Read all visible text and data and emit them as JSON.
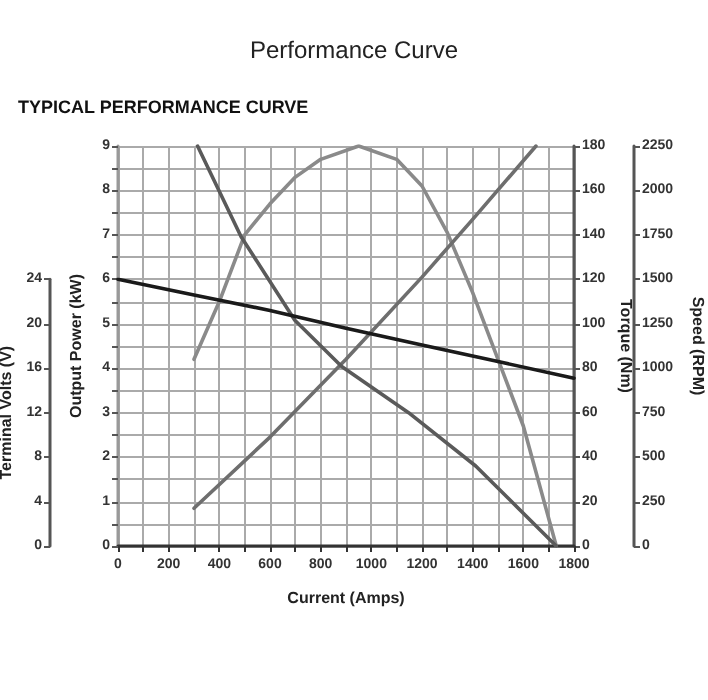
{
  "chart_data": [
    {
      "type": "line",
      "ylabel": "Terminal Volts (V)",
      "xlim": [
        0,
        1800
      ],
      "ylim": [
        0,
        24
      ],
      "yticks": [
        0,
        4,
        8,
        12,
        16,
        20,
        24
      ],
      "tick_labels": "y",
      "series": [
        {
          "color": "#1a1a1a",
          "x": [
            0,
            300,
            600,
            900,
            1200,
            1500,
            1800
          ],
          "values": [
            24,
            22.6,
            21.2,
            19.6,
            18.1,
            16.6,
            15.1
          ]
        }
      ]
    },
    {
      "type": "line",
      "title": "Performance Curve",
      "subtitle": "TYPICAL PERFORMANCE CURVE",
      "xlabel": "Current (Amps)",
      "ylabel": "Output Power (kW)",
      "y2label": "Torque (Nm)",
      "y3label": "Speed (RPM)",
      "xlim": [
        0,
        1800
      ],
      "xticks": [
        0,
        {
          "value": 100,
          "label": null
        },
        200,
        {
          "value": 300,
          "label": null
        },
        400,
        {
          "value": 500,
          "label": null
        },
        600,
        {
          "value": 700,
          "label": null
        },
        800,
        {
          "value": 900,
          "label": null
        },
        1000,
        {
          "value": 1100,
          "label": null
        },
        1200,
        {
          "value": 1300,
          "label": null
        },
        1400,
        {
          "value": 1500,
          "label": null
        },
        1600,
        {
          "value": 1700,
          "label": null
        },
        1800
      ],
      "ylim": [
        0,
        9
      ],
      "yticks": [
        0,
        {
          "value": 0.5,
          "label": null
        },
        1,
        {
          "value": 1.5,
          "label": null
        },
        2,
        {
          "value": 2.5,
          "label": null
        },
        3,
        {
          "value": 3.5,
          "label": null
        },
        4,
        {
          "value": 4.5,
          "label": null
        },
        5,
        {
          "value": 5.5,
          "label": null
        },
        6,
        {
          "value": 6.5,
          "label": null
        },
        7,
        {
          "value": 7.5,
          "label": null
        },
        8,
        {
          "value": 8.5,
          "label": null
        },
        9
      ],
      "y2lim": [
        0,
        180
      ],
      "y2ticks": [
        0,
        20,
        40,
        60,
        80,
        100,
        120,
        140,
        160,
        180
      ],
      "y3lim": [
        0,
        2250
      ],
      "y3ticks": [
        0,
        250,
        500,
        750,
        1000,
        1250,
        1500,
        1750,
        2000,
        2250
      ],
      "grid": true,
      "series": [
        {
          "color": "#8a8a8a",
          "x": [
            300,
            400,
            500,
            600,
            700,
            800,
            950,
            1100,
            1200,
            1300,
            1400,
            1500,
            1600,
            1730
          ],
          "values": [
            4.2,
            5.5,
            7,
            7.7,
            8.3,
            8.7,
            9,
            8.7,
            8.1,
            7.05,
            5.7,
            4.2,
            2.7,
            0
          ]
        },
        {
          "color": "#6e6e6e",
          "axis": "y2",
          "x": [
            300,
            600,
            900,
            1200,
            1400,
            1650
          ],
          "values": [
            17,
            49,
            84,
            121,
            147,
            180
          ]
        },
        {
          "color": "#5a5a5a",
          "axis": "y3",
          "x": [
            314,
            486,
            698,
            883,
            1147,
            1412,
            1730
          ],
          "values": [
            2250,
            1740,
            1270,
            1010,
            750,
            450,
            0
          ]
        }
      ]
    }
  ]
}
